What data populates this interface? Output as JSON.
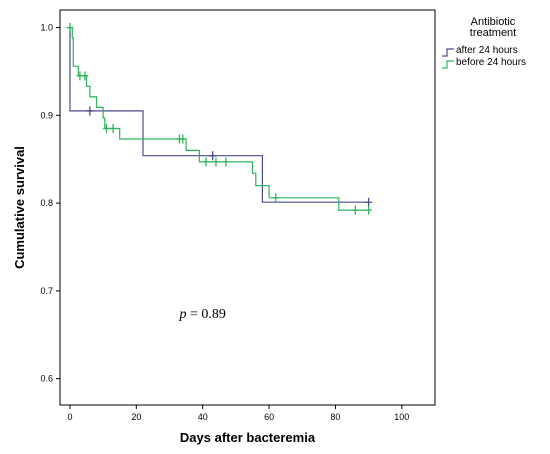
{
  "chart_data": {
    "type": "line",
    "xlabel": "Days after bacteremia",
    "ylabel": "Cumulative survival",
    "xlim": [
      -3,
      110
    ],
    "ylim": [
      0.57,
      1.02
    ],
    "xticks": [
      0,
      20,
      40,
      60,
      80,
      100
    ],
    "yticks": [
      0.6,
      0.7,
      0.8,
      0.9,
      1.0
    ],
    "ytick_labels": [
      "0.6",
      "0.7",
      "0.8",
      "0.9",
      "1.0"
    ],
    "grid": false,
    "legend": {
      "title": "Antibiotic\ntreatment",
      "position": "top-right-outside"
    },
    "annotation": {
      "italic": "p",
      "text": " = 0.89"
    },
    "series": [
      {
        "name": "after 24 hours",
        "color": "#4a4a8c",
        "steps": [
          [
            0,
            1.0
          ],
          [
            0,
            0.905
          ],
          [
            22,
            0.905
          ],
          [
            22,
            0.854
          ],
          [
            58,
            0.854
          ],
          [
            58,
            0.801
          ],
          [
            90,
            0.801
          ]
        ],
        "censored": [
          [
            6,
            0.905
          ],
          [
            43,
            0.854
          ],
          [
            90,
            0.801
          ]
        ]
      },
      {
        "name": "before 24 hours",
        "color": "#2db35a",
        "steps": [
          [
            0,
            1.0
          ],
          [
            0.7,
            1.0
          ],
          [
            0.7,
            0.988
          ],
          [
            1,
            0.988
          ],
          [
            1,
            0.956
          ],
          [
            2.5,
            0.956
          ],
          [
            2.5,
            0.945
          ],
          [
            5,
            0.945
          ],
          [
            5,
            0.933
          ],
          [
            6,
            0.933
          ],
          [
            6,
            0.921
          ],
          [
            8,
            0.921
          ],
          [
            8,
            0.909
          ],
          [
            10,
            0.909
          ],
          [
            10,
            0.897
          ],
          [
            10.5,
            0.897
          ],
          [
            10.5,
            0.885
          ],
          [
            15,
            0.885
          ],
          [
            15,
            0.873
          ],
          [
            35,
            0.873
          ],
          [
            35,
            0.86
          ],
          [
            39,
            0.86
          ],
          [
            39,
            0.847
          ],
          [
            55,
            0.847
          ],
          [
            55,
            0.834
          ],
          [
            56,
            0.834
          ],
          [
            56,
            0.82
          ],
          [
            60,
            0.82
          ],
          [
            60,
            0.806
          ],
          [
            81,
            0.806
          ],
          [
            81,
            0.792
          ],
          [
            90,
            0.792
          ]
        ],
        "censored": [
          [
            0,
            1.0
          ],
          [
            3,
            0.945
          ],
          [
            4.5,
            0.945
          ],
          [
            11,
            0.885
          ],
          [
            13,
            0.885
          ],
          [
            33,
            0.873
          ],
          [
            34,
            0.873
          ],
          [
            41,
            0.847
          ],
          [
            44,
            0.847
          ],
          [
            47,
            0.847
          ],
          [
            62,
            0.806
          ],
          [
            86,
            0.792
          ],
          [
            90,
            0.792
          ]
        ]
      }
    ]
  }
}
